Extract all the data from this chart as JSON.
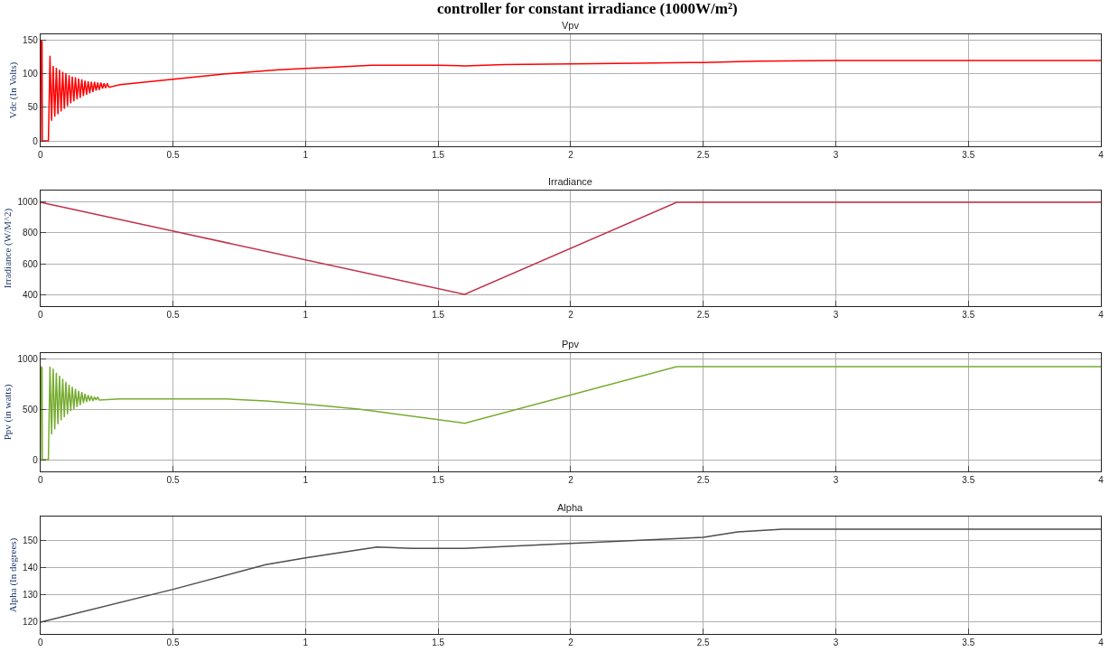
{
  "chart_data": [
    {
      "type": "line",
      "title": "Vpv",
      "annotations": [
        "controller for constant irradiance (1000W/m²)"
      ],
      "ylabel": "Vdc (In Volts)",
      "xlim": [
        0,
        4
      ],
      "xticks": [
        0,
        0.5,
        1,
        1.5,
        2,
        2.5,
        3,
        3.5,
        4
      ],
      "ylim": [
        -8,
        159
      ],
      "yticks": [
        0,
        50,
        100,
        150
      ],
      "grid": true,
      "series": [
        {
          "color": "#ff0000",
          "x": [
            0,
            0.002,
            0.006,
            0.007,
            0.03,
            0.036,
            0.042,
            0.048,
            0.054,
            0.06,
            0.066,
            0.072,
            0.078,
            0.084,
            0.09,
            0.096,
            0.102,
            0.108,
            0.114,
            0.12,
            0.126,
            0.132,
            0.138,
            0.144,
            0.15,
            0.156,
            0.162,
            0.168,
            0.174,
            0.18,
            0.186,
            0.192,
            0.198,
            0.204,
            0.21,
            0.216,
            0.222,
            0.228,
            0.234,
            0.24,
            0.246,
            0.252,
            0.258,
            0.3,
            0.4,
            0.5,
            0.6,
            0.7,
            0.8,
            0.9,
            1.0,
            1.1,
            1.25,
            1.5,
            1.6,
            1.75,
            2.0,
            2.25,
            2.5,
            2.7,
            3.0,
            3.5,
            4.0
          ],
          "values": [
            0,
            150,
            148,
            0,
            0,
            127,
            30,
            112,
            36,
            109,
            40,
            106,
            44,
            103,
            48,
            101,
            52,
            98,
            56,
            96,
            59,
            95,
            62,
            93,
            64,
            92,
            67,
            90,
            69,
            89,
            71,
            88,
            73,
            88,
            75,
            87,
            76,
            87,
            78,
            86,
            79,
            86,
            80,
            84,
            88,
            92,
            96,
            100,
            103,
            106,
            108,
            110,
            113,
            113,
            112,
            114,
            115,
            116,
            117,
            119,
            120,
            120,
            120
          ]
        }
      ]
    },
    {
      "type": "line",
      "title": "Irradiance",
      "ylabel": "Irradiance (W/M^2)",
      "xlim": [
        0,
        4
      ],
      "xticks": [
        0,
        0.5,
        1,
        1.5,
        2,
        2.5,
        3,
        3.5,
        4
      ],
      "ylim": [
        324,
        1076
      ],
      "yticks": [
        400,
        600,
        800,
        1000
      ],
      "grid": true,
      "series": [
        {
          "color": "#c0304a",
          "x": [
            0,
            1.6,
            2.4,
            4
          ],
          "values": [
            1000,
            400,
            1000,
            1000
          ]
        }
      ]
    },
    {
      "type": "line",
      "title": "Ppv",
      "ylabel": "Ppv (in watts)",
      "xlim": [
        0,
        4
      ],
      "xticks": [
        0,
        0.5,
        1,
        1.5,
        2,
        2.5,
        3,
        3.5,
        4
      ],
      "ylim": [
        -116,
        1054
      ],
      "yticks": [
        0,
        500,
        1000
      ],
      "grid": true,
      "series": [
        {
          "color": "#77ac30",
          "x": [
            0,
            0.002,
            0.006,
            0.007,
            0.03,
            0.036,
            0.042,
            0.048,
            0.054,
            0.06,
            0.066,
            0.072,
            0.078,
            0.084,
            0.09,
            0.096,
            0.102,
            0.108,
            0.114,
            0.12,
            0.126,
            0.132,
            0.138,
            0.144,
            0.15,
            0.156,
            0.162,
            0.168,
            0.174,
            0.18,
            0.186,
            0.192,
            0.198,
            0.204,
            0.21,
            0.216,
            0.222,
            0.3,
            0.5,
            0.7,
            0.85,
            1.0,
            1.2,
            1.6,
            2.4,
            3.0,
            4.0
          ],
          "values": [
            0,
            920,
            910,
            0,
            0,
            920,
            250,
            900,
            300,
            860,
            350,
            830,
            390,
            800,
            420,
            770,
            450,
            740,
            480,
            720,
            500,
            700,
            520,
            680,
            540,
            670,
            560,
            650,
            570,
            640,
            580,
            630,
            580,
            620,
            590,
            620,
            590,
            600,
            600,
            600,
            580,
            550,
            500,
            360,
            920,
            920,
            920
          ]
        }
      ]
    },
    {
      "type": "line",
      "title": "Alpha",
      "ylabel": "Alpha (In degrees)",
      "xlim": [
        0,
        4
      ],
      "xticks": [
        0,
        0.5,
        1,
        1.5,
        2,
        2.5,
        3,
        3.5,
        4
      ],
      "ylim": [
        115.7,
        158.6
      ],
      "yticks": [
        120,
        130,
        140,
        150
      ],
      "grid": true,
      "series": [
        {
          "color": "#4d4d4d",
          "x": [
            0,
            0.5,
            0.85,
            1.0,
            1.27,
            1.4,
            1.5,
            1.6,
            2.0,
            2.5,
            2.63,
            2.8,
            4.0
          ],
          "values": [
            120,
            132,
            141,
            143.5,
            147.5,
            147,
            147,
            147,
            148.8,
            151,
            153,
            154,
            154
          ]
        }
      ]
    }
  ]
}
